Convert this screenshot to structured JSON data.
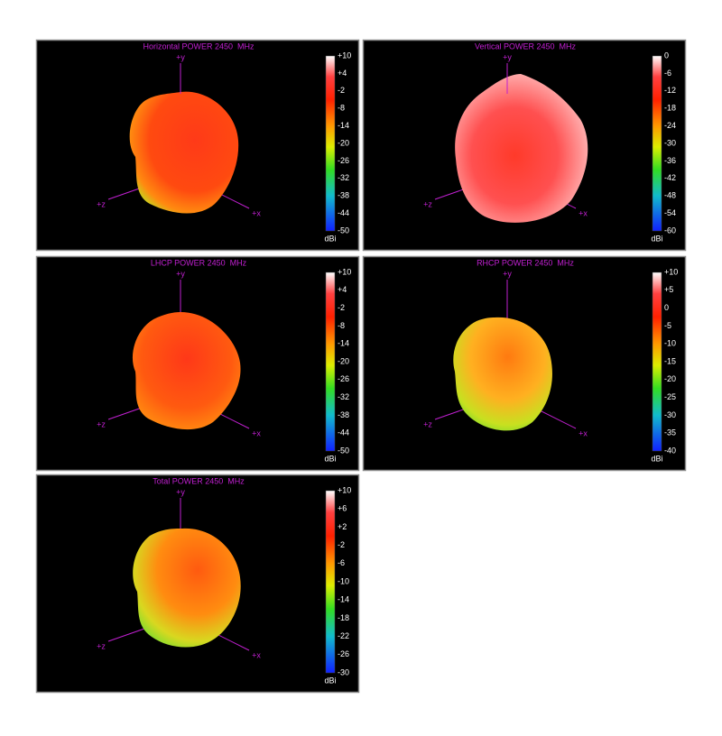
{
  "panels": [
    {
      "title": "Horizontal POWER 2450  MHz",
      "axes": {
        "y": "+y",
        "z": "+z",
        "x": "+x"
      },
      "colorbar": {
        "ticks": [
          "+10",
          "+4",
          "-2",
          "-8",
          "-14",
          "-20",
          "-26",
          "-32",
          "-38",
          "-44",
          "-50"
        ],
        "unit": "dBi"
      }
    },
    {
      "title": "Vertical POWER 2450  MHz",
      "axes": {
        "y": "+y",
        "z": "+z",
        "x": "+x"
      },
      "colorbar": {
        "ticks": [
          "0",
          "-6",
          "-12",
          "-18",
          "-24",
          "-30",
          "-36",
          "-42",
          "-48",
          "-54",
          "-60"
        ],
        "unit": "dBi"
      }
    },
    {
      "title": "LHCP POWER 2450  MHz",
      "axes": {
        "y": "+y",
        "z": "+z",
        "x": "+x"
      },
      "colorbar": {
        "ticks": [
          "+10",
          "+4",
          "-2",
          "-8",
          "-14",
          "-20",
          "-26",
          "-32",
          "-38",
          "-44",
          "-50"
        ],
        "unit": "dBi"
      }
    },
    {
      "title": "RHCP POWER 2450  MHz",
      "axes": {
        "y": "+y",
        "z": "+z",
        "x": "+x"
      },
      "colorbar": {
        "ticks": [
          "+10",
          "+5",
          "0",
          "-5",
          "-10",
          "-15",
          "-20",
          "-25",
          "-30",
          "-35",
          "-40"
        ],
        "unit": "dBi"
      }
    },
    {
      "title": "Total POWER 2450  MHz",
      "axes": {
        "y": "+y",
        "z": "+z",
        "x": "+x"
      },
      "colorbar": {
        "ticks": [
          "+10",
          "+6",
          "+2",
          "-2",
          "-6",
          "-10",
          "-14",
          "-18",
          "-22",
          "-26",
          "-30"
        ],
        "unit": "dBi"
      }
    }
  ]
}
